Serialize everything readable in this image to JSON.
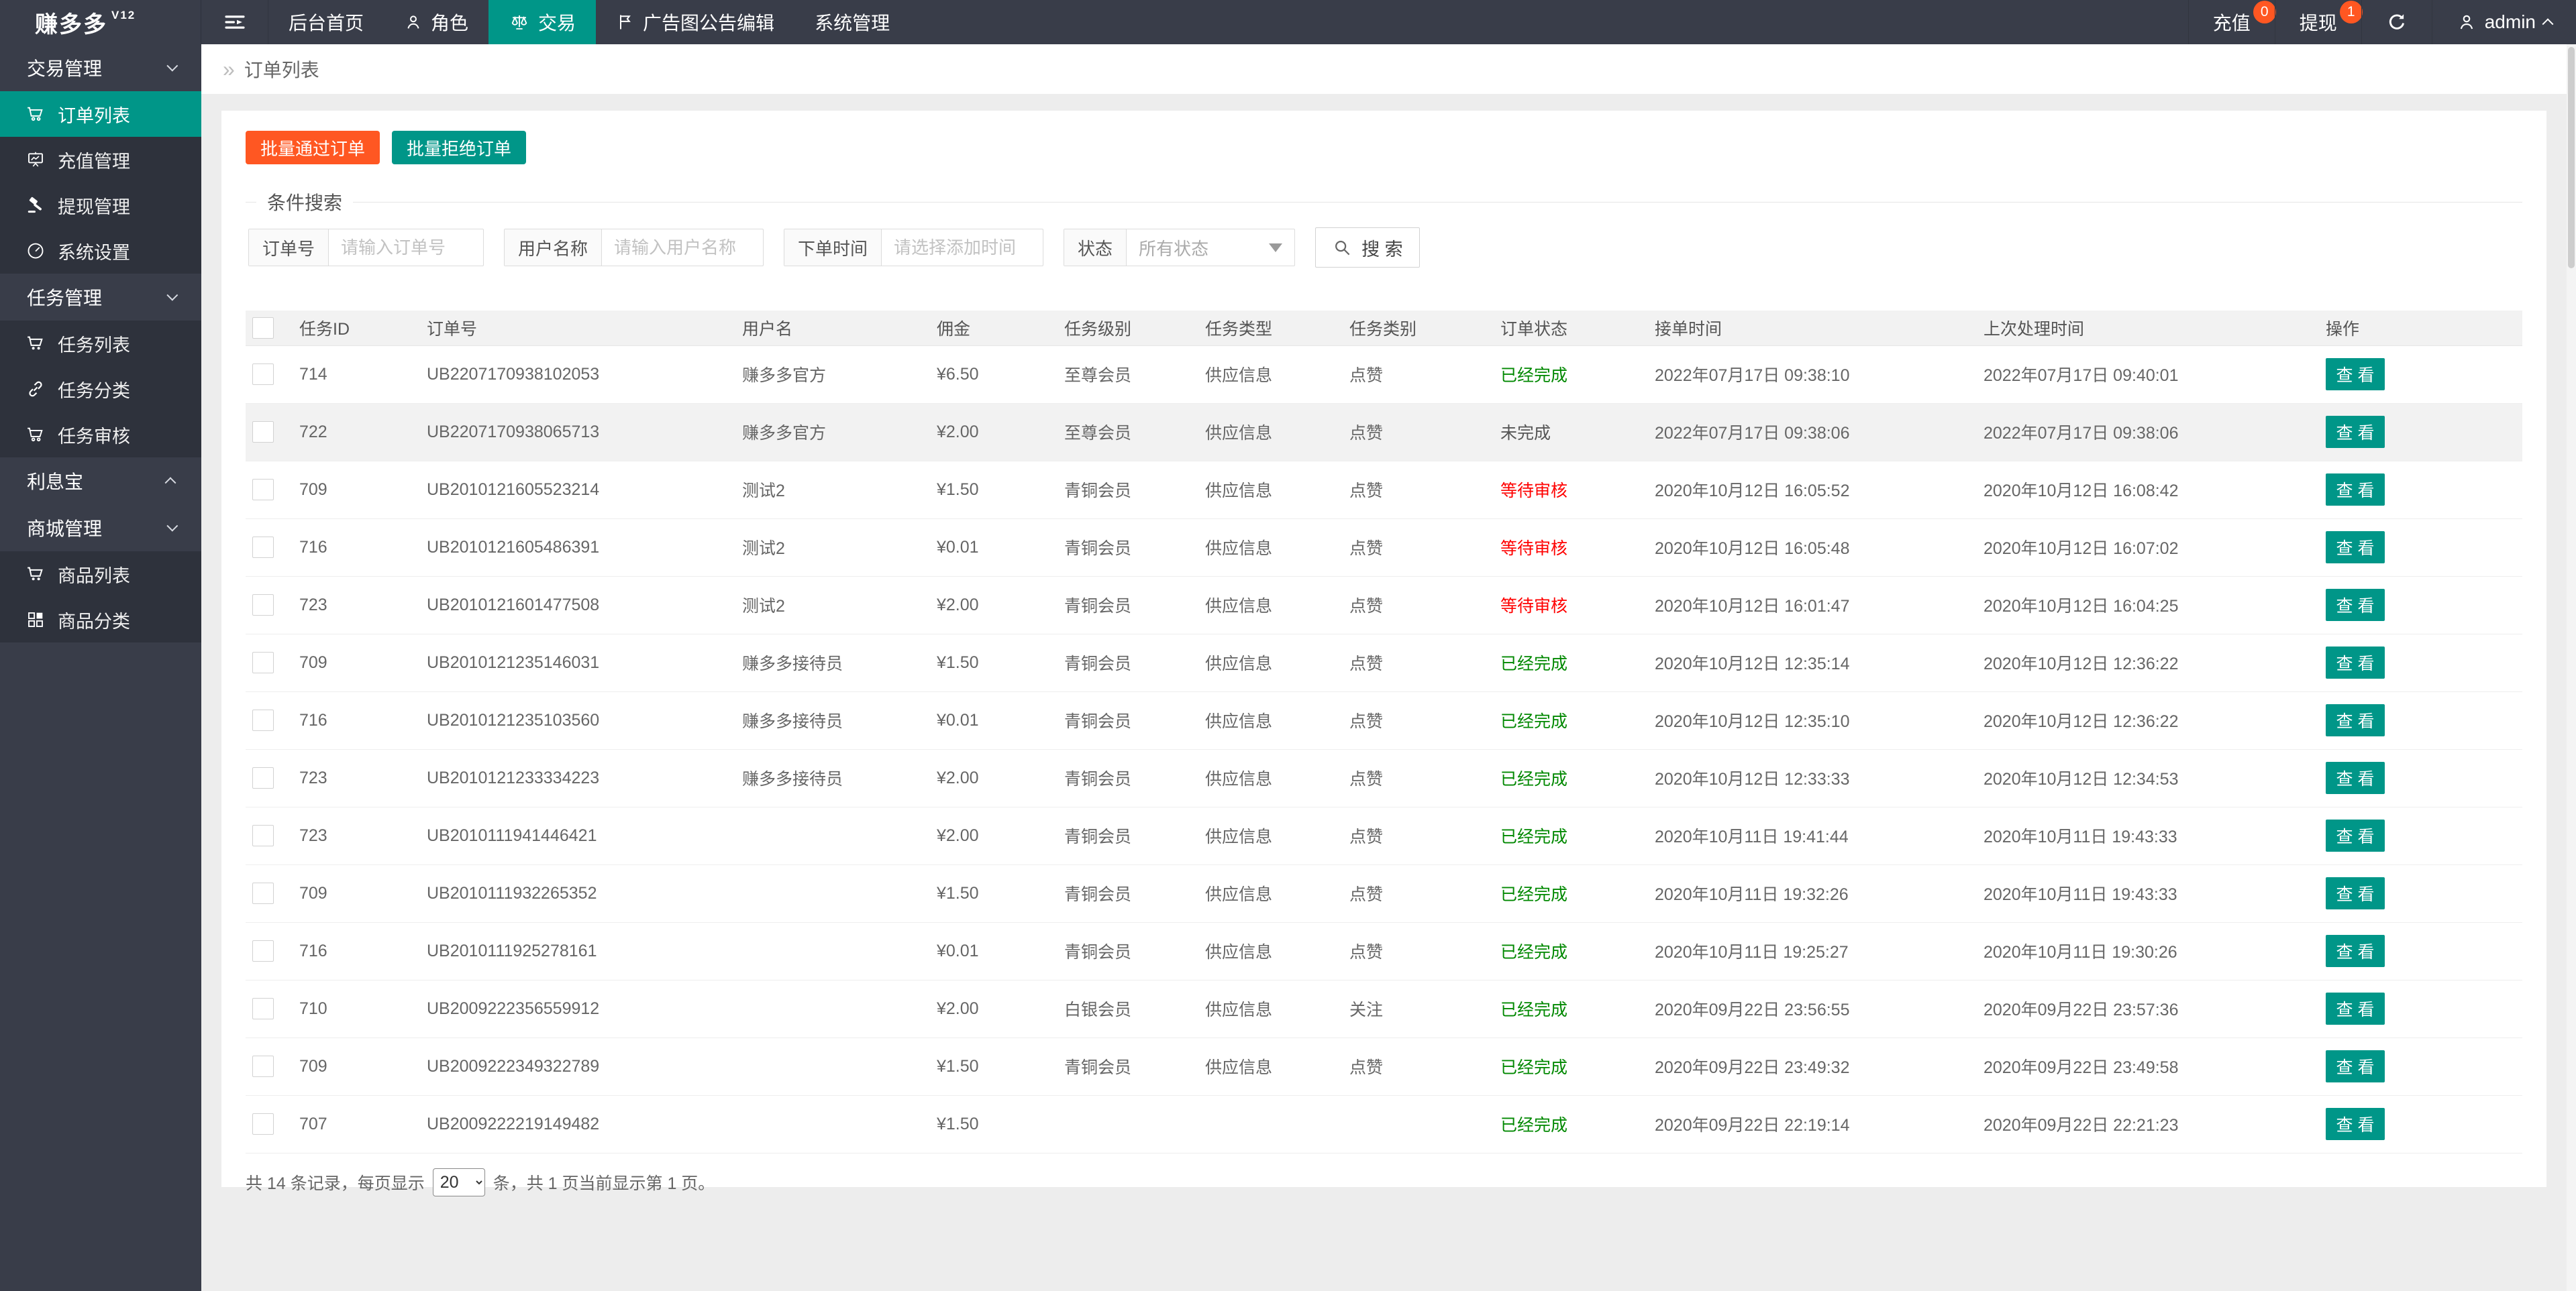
{
  "colors": {
    "header_bg": "#393D49",
    "accent": "#009688",
    "warn": "#FF5722",
    "ok": "#008800",
    "bad": "#FF0000"
  },
  "header": {
    "logo_text": "赚多多",
    "logo_version": "V12",
    "nav": [
      {
        "label": "后台首页",
        "icon": null,
        "active": false
      },
      {
        "label": "角色",
        "icon": "person",
        "active": false
      },
      {
        "label": "交易",
        "icon": "scales",
        "active": true
      },
      {
        "label": "广告图公告编辑",
        "icon": "flag",
        "active": false
      },
      {
        "label": "系统管理",
        "icon": null,
        "active": false
      }
    ],
    "right": {
      "recharge": {
        "label": "充值",
        "badge": "0"
      },
      "withdraw": {
        "label": "提现",
        "badge": "1"
      },
      "user": "admin"
    }
  },
  "sidebar": {
    "items": [
      {
        "type": "group",
        "label": "交易管理",
        "chevron": "down"
      },
      {
        "type": "item",
        "label": "订单列表",
        "icon": "cart",
        "active": true
      },
      {
        "type": "item",
        "label": "充值管理",
        "icon": "board",
        "active": false
      },
      {
        "type": "item",
        "label": "提现管理",
        "icon": "gavel",
        "active": false
      },
      {
        "type": "item",
        "label": "系统设置",
        "icon": "gauge",
        "active": false
      },
      {
        "type": "group",
        "label": "任务管理",
        "chevron": "down"
      },
      {
        "type": "item",
        "label": "任务列表",
        "icon": "cart-solid",
        "active": false
      },
      {
        "type": "item",
        "label": "任务分类",
        "icon": "link",
        "active": false
      },
      {
        "type": "item",
        "label": "任务审核",
        "icon": "cart",
        "active": false
      },
      {
        "type": "group",
        "label": "利息宝",
        "chevron": "up"
      },
      {
        "type": "group",
        "label": "商城管理",
        "chevron": "down"
      },
      {
        "type": "item",
        "label": "商品列表",
        "icon": "cart-solid",
        "active": false
      },
      {
        "type": "item",
        "label": "商品分类",
        "icon": "grid",
        "active": false
      }
    ]
  },
  "breadcrumb": {
    "icon": "»",
    "label": "订单列表"
  },
  "toolbar": {
    "approve_label": "批量通过订单",
    "reject_label": "批量拒绝订单"
  },
  "search": {
    "legend": "条件搜索",
    "order_no": {
      "label": "订单号",
      "placeholder": "请输入订单号"
    },
    "user_name": {
      "label": "用户名称",
      "placeholder": "请输入用户名称"
    },
    "order_time": {
      "label": "下单时间",
      "placeholder": "请选择添加时间"
    },
    "status": {
      "label": "状态",
      "value": "所有状态"
    },
    "button_label": "搜 索"
  },
  "table": {
    "columns": [
      "任务ID",
      "订单号",
      "用户名",
      "佣金",
      "任务级别",
      "任务类型",
      "任务类别",
      "订单状态",
      "接单时间",
      "上次处理时间",
      "操作"
    ],
    "view_label": "查 看",
    "rows": [
      {
        "task_id": "714",
        "order_no": "UB2207170938102053",
        "user": "赚多多官方",
        "commission": "¥6.50",
        "level": "至尊会员",
        "type": "供应信息",
        "category": "点赞",
        "status": "已经完成",
        "status_color": "green",
        "accept_time": "2022年07月17日 09:38:10",
        "process_time": "2022年07月17日 09:40:01",
        "highlight": false
      },
      {
        "task_id": "722",
        "order_no": "UB2207170938065713",
        "user": "赚多多官方",
        "commission": "¥2.00",
        "level": "至尊会员",
        "type": "供应信息",
        "category": "点赞",
        "status": "未完成",
        "status_color": "dark",
        "accept_time": "2022年07月17日 09:38:06",
        "process_time": "2022年07月17日 09:38:06",
        "highlight": true
      },
      {
        "task_id": "709",
        "order_no": "UB2010121605523214",
        "user": "测试2",
        "commission": "¥1.50",
        "level": "青铜会员",
        "type": "供应信息",
        "category": "点赞",
        "status": "等待审核",
        "status_color": "red",
        "accept_time": "2020年10月12日 16:05:52",
        "process_time": "2020年10月12日 16:08:42",
        "highlight": false
      },
      {
        "task_id": "716",
        "order_no": "UB2010121605486391",
        "user": "测试2",
        "commission": "¥0.01",
        "level": "青铜会员",
        "type": "供应信息",
        "category": "点赞",
        "status": "等待审核",
        "status_color": "red",
        "accept_time": "2020年10月12日 16:05:48",
        "process_time": "2020年10月12日 16:07:02",
        "highlight": false
      },
      {
        "task_id": "723",
        "order_no": "UB2010121601477508",
        "user": "测试2",
        "commission": "¥2.00",
        "level": "青铜会员",
        "type": "供应信息",
        "category": "点赞",
        "status": "等待审核",
        "status_color": "red",
        "accept_time": "2020年10月12日 16:01:47",
        "process_time": "2020年10月12日 16:04:25",
        "highlight": false
      },
      {
        "task_id": "709",
        "order_no": "UB2010121235146031",
        "user": "赚多多接待员",
        "commission": "¥1.50",
        "level": "青铜会员",
        "type": "供应信息",
        "category": "点赞",
        "status": "已经完成",
        "status_color": "green",
        "accept_time": "2020年10月12日 12:35:14",
        "process_time": "2020年10月12日 12:36:22",
        "highlight": false
      },
      {
        "task_id": "716",
        "order_no": "UB2010121235103560",
        "user": "赚多多接待员",
        "commission": "¥0.01",
        "level": "青铜会员",
        "type": "供应信息",
        "category": "点赞",
        "status": "已经完成",
        "status_color": "green",
        "accept_time": "2020年10月12日 12:35:10",
        "process_time": "2020年10月12日 12:36:22",
        "highlight": false
      },
      {
        "task_id": "723",
        "order_no": "UB2010121233334223",
        "user": "赚多多接待员",
        "commission": "¥2.00",
        "level": "青铜会员",
        "type": "供应信息",
        "category": "点赞",
        "status": "已经完成",
        "status_color": "green",
        "accept_time": "2020年10月12日 12:33:33",
        "process_time": "2020年10月12日 12:34:53",
        "highlight": false
      },
      {
        "task_id": "723",
        "order_no": "UB2010111941446421",
        "user": "",
        "commission": "¥2.00",
        "level": "青铜会员",
        "type": "供应信息",
        "category": "点赞",
        "status": "已经完成",
        "status_color": "green",
        "accept_time": "2020年10月11日 19:41:44",
        "process_time": "2020年10月11日 19:43:33",
        "highlight": false
      },
      {
        "task_id": "709",
        "order_no": "UB2010111932265352",
        "user": "",
        "commission": "¥1.50",
        "level": "青铜会员",
        "type": "供应信息",
        "category": "点赞",
        "status": "已经完成",
        "status_color": "green",
        "accept_time": "2020年10月11日 19:32:26",
        "process_time": "2020年10月11日 19:43:33",
        "highlight": false
      },
      {
        "task_id": "716",
        "order_no": "UB2010111925278161",
        "user": "",
        "commission": "¥0.01",
        "level": "青铜会员",
        "type": "供应信息",
        "category": "点赞",
        "status": "已经完成",
        "status_color": "green",
        "accept_time": "2020年10月11日 19:25:27",
        "process_time": "2020年10月11日 19:30:26",
        "highlight": false
      },
      {
        "task_id": "710",
        "order_no": "UB2009222356559912",
        "user": "",
        "commission": "¥2.00",
        "level": "白银会员",
        "type": "供应信息",
        "category": "关注",
        "status": "已经完成",
        "status_color": "green",
        "accept_time": "2020年09月22日 23:56:55",
        "process_time": "2020年09月22日 23:57:36",
        "highlight": false
      },
      {
        "task_id": "709",
        "order_no": "UB2009222349322789",
        "user": "",
        "commission": "¥1.50",
        "level": "青铜会员",
        "type": "供应信息",
        "category": "点赞",
        "status": "已经完成",
        "status_color": "green",
        "accept_time": "2020年09月22日 23:49:32",
        "process_time": "2020年09月22日 23:49:58",
        "highlight": false
      },
      {
        "task_id": "707",
        "order_no": "UB2009222219149482",
        "user": "",
        "commission": "¥1.50",
        "level": "",
        "type": "",
        "category": "",
        "status": "已经完成",
        "status_color": "green",
        "accept_time": "2020年09月22日 22:19:14",
        "process_time": "2020年09月22日 22:21:23",
        "highlight": false
      }
    ]
  },
  "pagination": {
    "prefix": "共 14 条记录，每页显示",
    "page_size": "20",
    "suffix": "条，共 1 页当前显示第 1 页。"
  }
}
